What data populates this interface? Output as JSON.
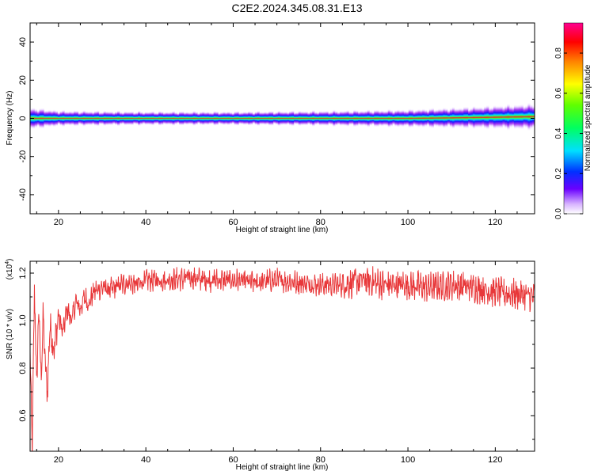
{
  "title": "C2E2.2024.345.08.31.E13",
  "colors": {
    "snr_line": "#e8383a",
    "band_core": "#ee2222",
    "band_outer": "#9b2cf0"
  },
  "chart_data": [
    {
      "type": "heatmap",
      "xlabel": "Height of straight line (km)",
      "ylabel": "Frequency (Hz)",
      "xlim": [
        13.5,
        129
      ],
      "ylim": [
        -50,
        50
      ],
      "x_ticks": [
        20,
        40,
        60,
        80,
        100,
        120
      ],
      "y_ticks": [
        -40,
        -20,
        0,
        20,
        40
      ],
      "grid": false,
      "description_values": {
        "band_center_hz": 0,
        "band_halfwidth_hz": [
          [
            13.5,
            3.5
          ],
          [
            20,
            2.5
          ],
          [
            40,
            2.2
          ],
          [
            60,
            2.2
          ],
          [
            80,
            2.4
          ],
          [
            100,
            2.8
          ],
          [
            115,
            3.2
          ],
          [
            129,
            3.6
          ]
        ],
        "band_upper_shift_hz": [
          [
            13.5,
            0
          ],
          [
            100,
            0
          ],
          [
            110,
            0.5
          ],
          [
            120,
            1.2
          ],
          [
            129,
            1.8
          ]
        ]
      },
      "colorbar": {
        "label": "Normalized spectral amplitude",
        "ticks": [
          "0.0",
          "0.2",
          "0.4",
          "0.6",
          "0.8"
        ],
        "range": [
          0,
          0.95
        ],
        "colormap": "rainbow"
      }
    },
    {
      "type": "line",
      "xlabel": "Height of straight line (km)",
      "ylabel": "SNR (10 * v/v)",
      "multiplier": "(x10",
      "multiplier_exp": "4",
      "multiplier_close": ")",
      "xlim": [
        13.5,
        129
      ],
      "ylim": [
        0.45,
        1.25
      ],
      "x_ticks": [
        20,
        40,
        60,
        80,
        100,
        120
      ],
      "y_ticks": [
        "0.6",
        "0.8",
        "1.0",
        "1.2"
      ],
      "grid": false,
      "series": [
        {
          "x": [
            13.5,
            14,
            14.5,
            15,
            15.5,
            16,
            16.5,
            17,
            17.5,
            18,
            19,
            20,
            21,
            22,
            23,
            24,
            25,
            26,
            27,
            28,
            30,
            32,
            34,
            36,
            38,
            40,
            45,
            50,
            55,
            60,
            65,
            70,
            75,
            80,
            85,
            90,
            95,
            100,
            105,
            110,
            115,
            120,
            125,
            129
          ],
          "y": [
            0.85,
            0.46,
            1.15,
            0.72,
            1.06,
            0.75,
            1.02,
            0.8,
            0.7,
            0.98,
            0.88,
            1.02,
            0.95,
            1.05,
            1.0,
            1.08,
            1.05,
            1.1,
            1.07,
            1.12,
            1.14,
            1.13,
            1.15,
            1.16,
            1.15,
            1.17,
            1.17,
            1.18,
            1.17,
            1.17,
            1.16,
            1.17,
            1.16,
            1.15,
            1.15,
            1.17,
            1.15,
            1.15,
            1.14,
            1.15,
            1.14,
            1.12,
            1.11,
            1.1
          ]
        }
      ]
    }
  ]
}
